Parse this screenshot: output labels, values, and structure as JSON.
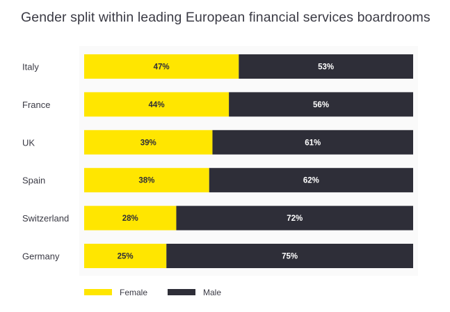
{
  "chart_data": {
    "type": "bar",
    "orientation": "horizontal",
    "stacked": true,
    "percent": true,
    "title": "Gender split within leading European financial services boardrooms",
    "categories": [
      "Italy",
      "France",
      "UK",
      "Spain",
      "Switzerland",
      "Germany"
    ],
    "series": [
      {
        "name": "Female",
        "values": [
          47,
          44,
          39,
          38,
          28,
          25
        ],
        "color": "#ffe600",
        "label_color": "#2e2e38"
      },
      {
        "name": "Male",
        "values": [
          53,
          56,
          61,
          62,
          72,
          75
        ],
        "color": "#2e2e38",
        "label_color": "#ffffff"
      }
    ],
    "xlim": [
      0,
      100
    ],
    "value_suffix": "%",
    "grid": false,
    "legend": "bottom-left"
  }
}
